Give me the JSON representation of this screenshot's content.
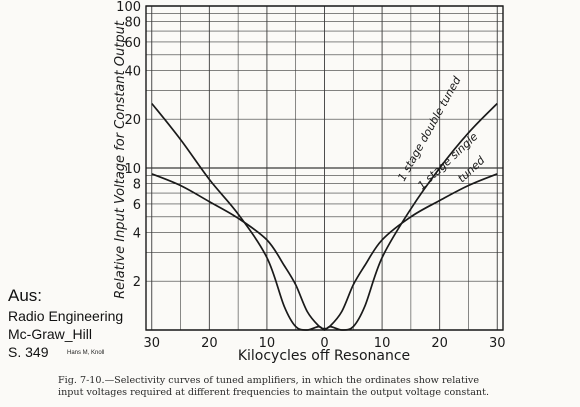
{
  "chart_data": {
    "type": "line",
    "title": "",
    "xlabel": "Kilocycles off Resonance",
    "ylabel": "Relative Input Voltage for Constant Output",
    "x_tick_labels": [
      "30",
      "20",
      "10",
      "0",
      "10",
      "20",
      "30"
    ],
    "x_tick_values": [
      -30,
      -20,
      -10,
      0,
      10,
      20,
      30
    ],
    "y_tick_labels": [
      "2",
      "4",
      "6",
      "8",
      "10",
      "20",
      "40",
      "60",
      "80",
      "100"
    ],
    "y_tick_values": [
      2,
      4,
      6,
      8,
      10,
      20,
      40,
      60,
      80,
      100
    ],
    "y_scale": "log",
    "xlim": [
      -31,
      31
    ],
    "ylim": [
      1,
      100
    ],
    "grid": true,
    "series": [
      {
        "name": "1 stage double tuned",
        "x": [
          -30,
          -25,
          -20,
          -15,
          -10,
          -7,
          -5,
          -3,
          -1,
          0,
          1,
          3,
          5,
          7,
          10,
          15,
          20,
          25,
          30
        ],
        "y": [
          25,
          15,
          8.5,
          5.2,
          2.8,
          1.4,
          1.05,
          1.0,
          1.05,
          1.0,
          1.05,
          1.0,
          1.05,
          1.4,
          2.8,
          5.6,
          10,
          16.5,
          25
        ]
      },
      {
        "name": "1 stage single tuned",
        "x": [
          -30,
          -25,
          -20,
          -15,
          -10,
          -7,
          -5,
          -3,
          -1,
          0,
          1,
          3,
          5,
          7,
          10,
          15,
          20,
          25,
          30
        ],
        "y": [
          9.2,
          7.8,
          6.2,
          4.9,
          3.6,
          2.5,
          1.9,
          1.3,
          1.06,
          1.02,
          1.06,
          1.3,
          1.9,
          2.5,
          3.6,
          5.0,
          6.3,
          7.8,
          9.2
        ]
      }
    ]
  },
  "source": {
    "aus": "Aus:",
    "book": "Radio Engineering",
    "publisher": "Mc-Graw_Hill",
    "page": "S. 349",
    "author": "Hans M, Knoll"
  },
  "caption": {
    "line1": "Fig. 7-10.—Selectivity curves of tuned amplifiers, in which the ordinates show relative",
    "line2": "input voltages required at different frequencies to maintain the output voltage constant."
  },
  "colors": {
    "ink": "#1a1a1a",
    "grid": "#3a3a3a",
    "paper": "#fbfaf7"
  }
}
